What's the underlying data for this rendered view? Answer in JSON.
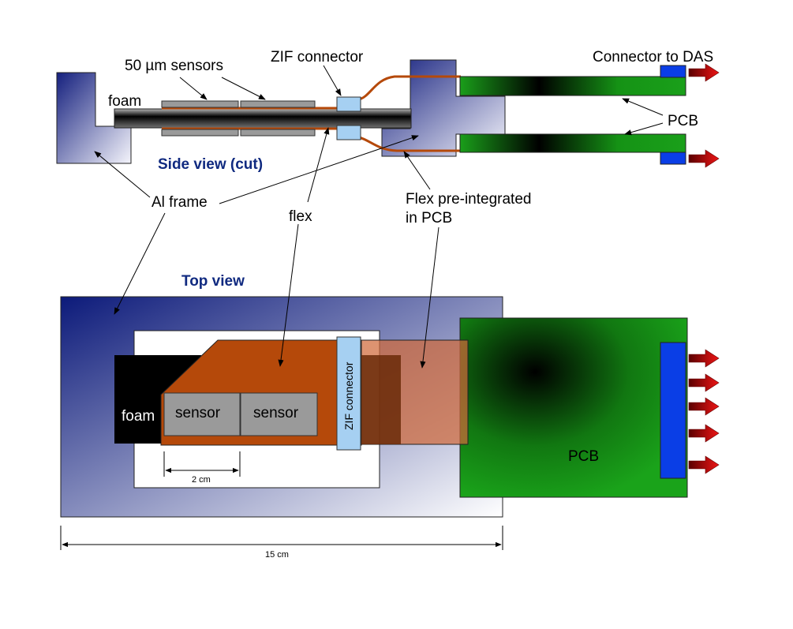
{
  "side_view": {
    "title": "Side view (cut)",
    "label_sensors": "50 µm sensors",
    "label_zif": "ZIF connector",
    "label_das": "Connector to DAS",
    "label_foam": "foam",
    "label_pcb": "PCB",
    "label_al_frame": "Al frame",
    "label_flex": "flex",
    "label_flex_pcb_line1": "Flex pre-integrated",
    "label_flex_pcb_line2": "in PCB"
  },
  "top_view": {
    "title": "Top view",
    "label_foam": "foam",
    "sensor1": "sensor",
    "sensor2": "sensor",
    "zif": "ZIF connector",
    "pcb": "PCB",
    "dim_small": "2 cm",
    "dim_large": "15 cm"
  },
  "colors": {
    "title_blue": "#102a80",
    "frame_dark": "#0c1a7a",
    "flex_orange": "#b5490a",
    "pcb_green": "#169a16",
    "connector_blue": "#0a3ee6",
    "zif_light_blue": "#a6d0f2",
    "arrow_red": "#e61414"
  }
}
